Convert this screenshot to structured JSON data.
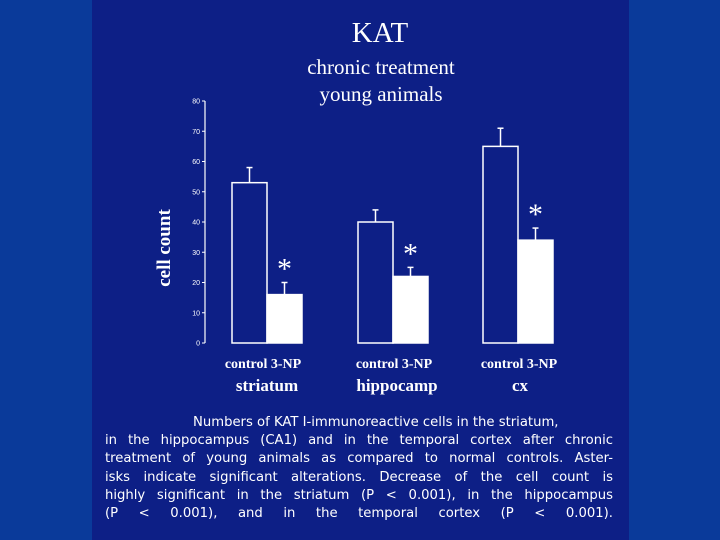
{
  "page": {
    "background": "#0a3a9a",
    "panel_color": "#0d1f86"
  },
  "chart_data": {
    "type": "bar",
    "title": "KAT",
    "subtitle_lines": [
      "chronic treatment",
      "young animals"
    ],
    "ylabel": "cell count",
    "ylim": [
      0,
      80
    ],
    "yticks": [
      0,
      10,
      20,
      30,
      40,
      50,
      60,
      70,
      80
    ],
    "groups": [
      "striatum",
      "hippocamp",
      "cx"
    ],
    "series": [
      {
        "name": "control",
        "values": [
          53,
          40,
          65
        ],
        "errors": [
          5,
          4,
          6
        ],
        "fill": "#0d1f86",
        "stroke": "#ffffff"
      },
      {
        "name": "3-NP",
        "values": [
          16,
          22,
          34
        ],
        "errors": [
          4,
          3,
          4
        ],
        "fill": "#ffffff",
        "stroke": "#ffffff"
      }
    ],
    "category_labels": [
      "control 3-NP",
      "control 3-NP",
      "control 3-NP"
    ],
    "significance_marker": "*",
    "significant": [
      true,
      true,
      true
    ]
  },
  "caption": {
    "lines": [
      "Numbers of KAT I-immunoreactive cells in the striatum,",
      "in the hippocampus (CA1) and in the temporal cortex after chronic",
      "treatment of young animals as compared to normal controls. Aster-",
      "isks indicate significant alterations. Decrease of the cell count is",
      "highly significant in the striatum (P < 0.001), in the hippocampus",
      "(P < 0.001), and in the temporal cortex (P < 0.001)."
    ]
  }
}
